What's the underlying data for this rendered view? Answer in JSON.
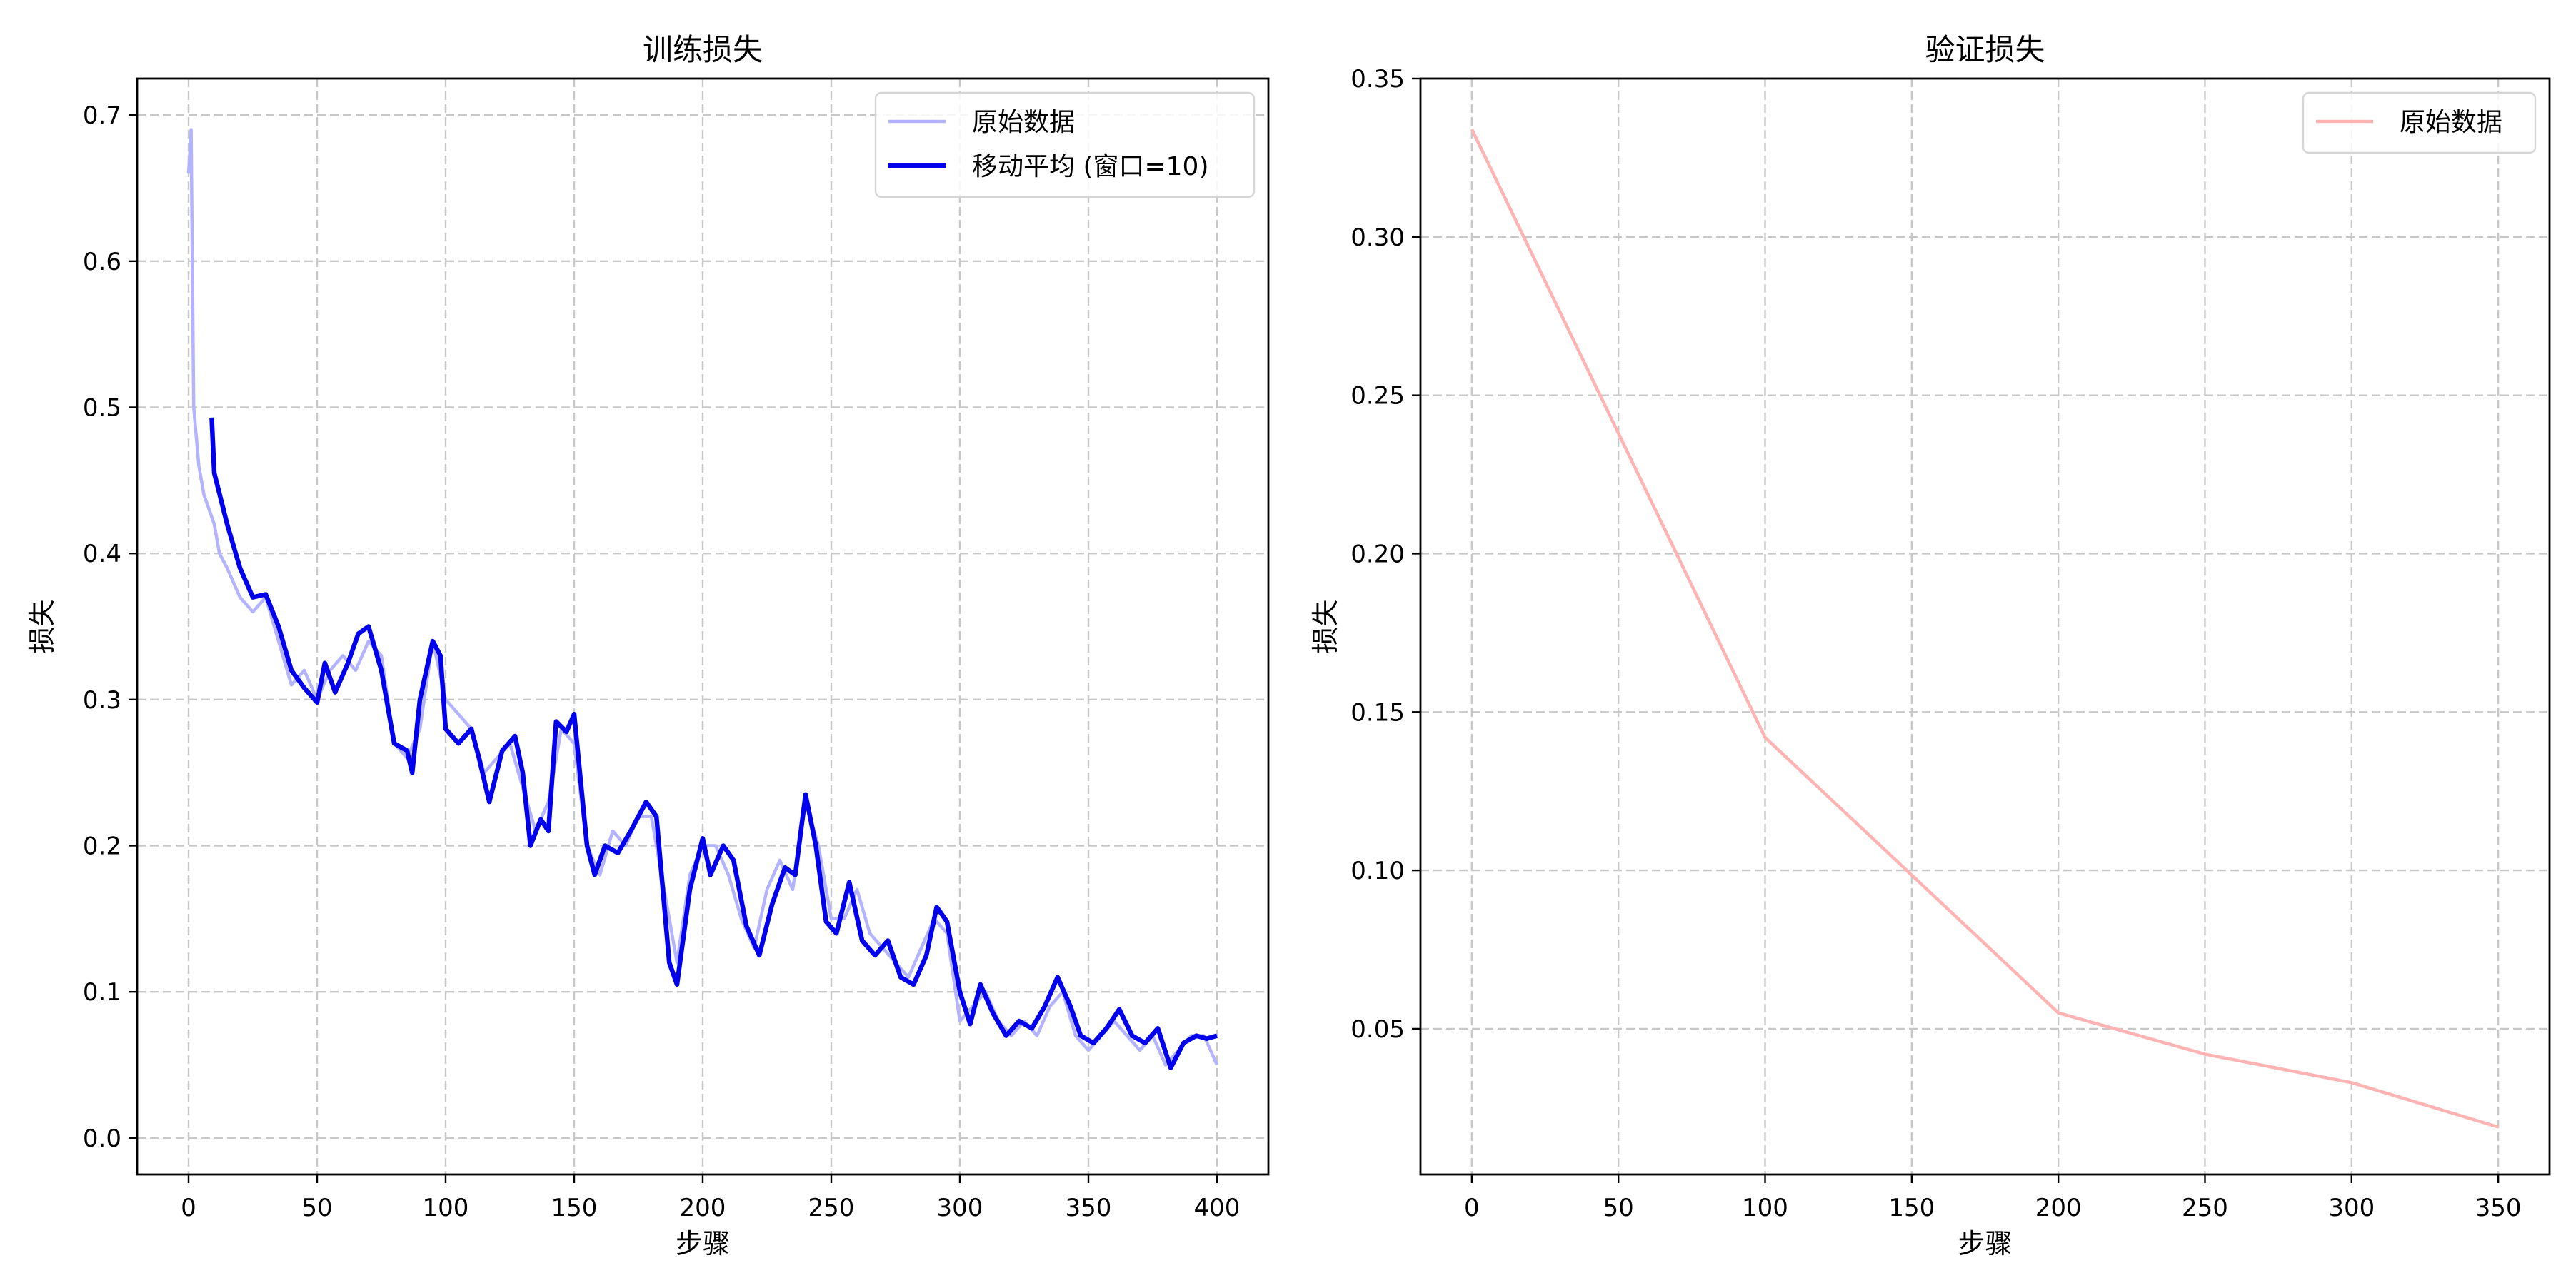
{
  "chart_data": [
    {
      "type": "line",
      "title": "训练损失",
      "xlabel": "步骤",
      "ylabel": "损失",
      "xlim": [
        -20,
        420
      ],
      "ylim": [
        -0.025,
        0.725
      ],
      "xticks": [
        0,
        50,
        100,
        150,
        200,
        250,
        300,
        350,
        400
      ],
      "xtick_labels": [
        "0",
        "50",
        "100",
        "150",
        "200",
        "250",
        "300",
        "350",
        "400"
      ],
      "yticks": [
        0.0,
        0.1,
        0.2,
        0.3,
        0.4,
        0.5,
        0.6,
        0.7
      ],
      "ytick_labels": [
        "0.0",
        "0.1",
        "0.2",
        "0.3",
        "0.4",
        "0.5",
        "0.6",
        "0.7"
      ],
      "grid": true,
      "legend_position": "top-right",
      "series": [
        {
          "name": "原始数据",
          "color": "#b3b3ff",
          "points": [
            [
              0,
              0.66
            ],
            [
              1,
              0.69
            ],
            [
              2,
              0.5
            ],
            [
              3,
              0.48
            ],
            [
              4,
              0.46
            ],
            [
              6,
              0.44
            ],
            [
              8,
              0.43
            ],
            [
              10,
              0.42
            ],
            [
              12,
              0.4
            ],
            [
              15,
              0.39
            ],
            [
              20,
              0.37
            ],
            [
              25,
              0.36
            ],
            [
              30,
              0.37
            ],
            [
              35,
              0.34
            ],
            [
              40,
              0.31
            ],
            [
              45,
              0.32
            ],
            [
              50,
              0.3
            ],
            [
              55,
              0.32
            ],
            [
              60,
              0.33
            ],
            [
              65,
              0.32
            ],
            [
              70,
              0.34
            ],
            [
              75,
              0.33
            ],
            [
              80,
              0.27
            ],
            [
              85,
              0.26
            ],
            [
              90,
              0.28
            ],
            [
              95,
              0.34
            ],
            [
              100,
              0.3
            ],
            [
              105,
              0.29
            ],
            [
              110,
              0.28
            ],
            [
              115,
              0.25
            ],
            [
              120,
              0.26
            ],
            [
              125,
              0.27
            ],
            [
              130,
              0.24
            ],
            [
              135,
              0.21
            ],
            [
              140,
              0.23
            ],
            [
              145,
              0.28
            ],
            [
              150,
              0.27
            ],
            [
              155,
              0.2
            ],
            [
              160,
              0.18
            ],
            [
              165,
              0.21
            ],
            [
              170,
              0.2
            ],
            [
              175,
              0.22
            ],
            [
              180,
              0.22
            ],
            [
              185,
              0.17
            ],
            [
              190,
              0.12
            ],
            [
              195,
              0.18
            ],
            [
              200,
              0.2
            ],
            [
              205,
              0.2
            ],
            [
              210,
              0.18
            ],
            [
              215,
              0.15
            ],
            [
              220,
              0.13
            ],
            [
              225,
              0.17
            ],
            [
              230,
              0.19
            ],
            [
              235,
              0.17
            ],
            [
              240,
              0.23
            ],
            [
              245,
              0.2
            ],
            [
              250,
              0.15
            ],
            [
              255,
              0.15
            ],
            [
              260,
              0.17
            ],
            [
              265,
              0.14
            ],
            [
              270,
              0.13
            ],
            [
              275,
              0.12
            ],
            [
              280,
              0.11
            ],
            [
              285,
              0.13
            ],
            [
              290,
              0.15
            ],
            [
              295,
              0.14
            ],
            [
              300,
              0.08
            ],
            [
              305,
              0.09
            ],
            [
              310,
              0.1
            ],
            [
              315,
              0.08
            ],
            [
              320,
              0.07
            ],
            [
              325,
              0.08
            ],
            [
              330,
              0.07
            ],
            [
              335,
              0.09
            ],
            [
              340,
              0.1
            ],
            [
              345,
              0.07
            ],
            [
              350,
              0.06
            ],
            [
              355,
              0.07
            ],
            [
              360,
              0.08
            ],
            [
              365,
              0.07
            ],
            [
              370,
              0.06
            ],
            [
              375,
              0.07
            ],
            [
              380,
              0.05
            ],
            [
              385,
              0.06
            ],
            [
              390,
              0.07
            ],
            [
              395,
              0.07
            ],
            [
              400,
              0.05
            ]
          ]
        },
        {
          "name": "移动平均 (窗口=10)",
          "color": "#0000ee",
          "points": [
            [
              9,
              0.493
            ],
            [
              10,
              0.455
            ],
            [
              15,
              0.42
            ],
            [
              20,
              0.39
            ],
            [
              25,
              0.37
            ],
            [
              30,
              0.372
            ],
            [
              35,
              0.35
            ],
            [
              40,
              0.32
            ],
            [
              45,
              0.308
            ],
            [
              50,
              0.298
            ],
            [
              53,
              0.325
            ],
            [
              57,
              0.305
            ],
            [
              62,
              0.325
            ],
            [
              66,
              0.345
            ],
            [
              70,
              0.35
            ],
            [
              75,
              0.32
            ],
            [
              80,
              0.27
            ],
            [
              85,
              0.265
            ],
            [
              87,
              0.25
            ],
            [
              90,
              0.3
            ],
            [
              95,
              0.34
            ],
            [
              98,
              0.33
            ],
            [
              100,
              0.28
            ],
            [
              105,
              0.27
            ],
            [
              110,
              0.28
            ],
            [
              113,
              0.26
            ],
            [
              117,
              0.23
            ],
            [
              122,
              0.265
            ],
            [
              127,
              0.275
            ],
            [
              130,
              0.25
            ],
            [
              133,
              0.2
            ],
            [
              137,
              0.218
            ],
            [
              140,
              0.21
            ],
            [
              143,
              0.285
            ],
            [
              147,
              0.278
            ],
            [
              150,
              0.29
            ],
            [
              155,
              0.2
            ],
            [
              158,
              0.18
            ],
            [
              162,
              0.2
            ],
            [
              167,
              0.195
            ],
            [
              172,
              0.21
            ],
            [
              178,
              0.23
            ],
            [
              182,
              0.22
            ],
            [
              187,
              0.12
            ],
            [
              190,
              0.105
            ],
            [
              195,
              0.17
            ],
            [
              200,
              0.205
            ],
            [
              203,
              0.18
            ],
            [
              208,
              0.2
            ],
            [
              212,
              0.19
            ],
            [
              217,
              0.145
            ],
            [
              222,
              0.125
            ],
            [
              227,
              0.16
            ],
            [
              232,
              0.185
            ],
            [
              236,
              0.18
            ],
            [
              240,
              0.235
            ],
            [
              244,
              0.2
            ],
            [
              248,
              0.148
            ],
            [
              252,
              0.14
            ],
            [
              257,
              0.175
            ],
            [
              262,
              0.135
            ],
            [
              267,
              0.125
            ],
            [
              272,
              0.135
            ],
            [
              277,
              0.11
            ],
            [
              282,
              0.105
            ],
            [
              287,
              0.125
            ],
            [
              291,
              0.158
            ],
            [
              295,
              0.148
            ],
            [
              300,
              0.1
            ],
            [
              304,
              0.078
            ],
            [
              308,
              0.105
            ],
            [
              313,
              0.085
            ],
            [
              318,
              0.07
            ],
            [
              323,
              0.08
            ],
            [
              328,
              0.075
            ],
            [
              333,
              0.09
            ],
            [
              338,
              0.11
            ],
            [
              343,
              0.09
            ],
            [
              347,
              0.07
            ],
            [
              352,
              0.065
            ],
            [
              357,
              0.075
            ],
            [
              362,
              0.088
            ],
            [
              367,
              0.07
            ],
            [
              372,
              0.065
            ],
            [
              377,
              0.075
            ],
            [
              382,
              0.048
            ],
            [
              387,
              0.065
            ],
            [
              392,
              0.07
            ],
            [
              396,
              0.068
            ],
            [
              400,
              0.07
            ]
          ]
        }
      ]
    },
    {
      "type": "line",
      "title": "验证损失",
      "xlabel": "步骤",
      "ylabel": "损失",
      "xlim": [
        -17.5,
        367.5
      ],
      "ylim": [
        0.004,
        0.35
      ],
      "xticks": [
        0,
        50,
        100,
        150,
        200,
        250,
        300,
        350
      ],
      "xtick_labels": [
        "0",
        "50",
        "100",
        "150",
        "200",
        "250",
        "300",
        "350"
      ],
      "yticks": [
        0.05,
        0.1,
        0.15,
        0.2,
        0.25,
        0.3,
        0.35
      ],
      "ytick_labels": [
        "0.05",
        "0.10",
        "0.15",
        "0.20",
        "0.25",
        "0.30",
        "0.35"
      ],
      "grid": true,
      "legend_position": "top-right",
      "series": [
        {
          "name": "原始数据",
          "color": "#ffb3b3",
          "points": [
            [
              0,
              0.334
            ],
            [
              100,
              0.142
            ],
            [
              200,
              0.055
            ],
            [
              250,
              0.042
            ],
            [
              300,
              0.033
            ],
            [
              350,
              0.019
            ]
          ]
        }
      ]
    }
  ]
}
